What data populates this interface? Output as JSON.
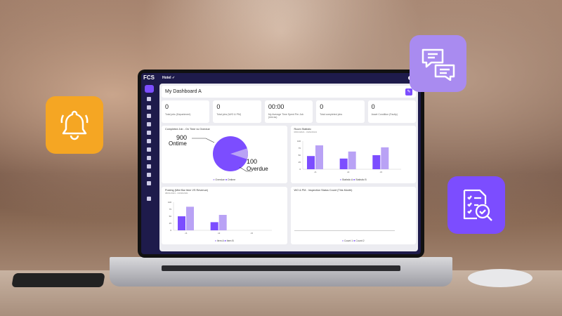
{
  "app": {
    "logo": "FCS",
    "breadcrumb": "Hotel ✓"
  },
  "header": {
    "title": "My Dashboard A"
  },
  "stats": [
    {
      "value": "0",
      "label": "Total jobs (Department)"
    },
    {
      "value": "0",
      "label": "Total jobs (W/O & PM)"
    },
    {
      "value": "00:00",
      "label": "My Average Time Spent Per Job (mm:ss)"
    },
    {
      "value": "0",
      "label": "Total completed jobs"
    },
    {
      "value": "0",
      "label": "Asset Condition (Faulty)"
    }
  ],
  "colors": {
    "dark": "#7c4dff",
    "light": "#b9a2f5",
    "bell_tile": "#f5a623",
    "chat_tile": "#a98bf0",
    "doc_tile": "#7c4dff"
  },
  "icons": [
    "bell-icon",
    "chat-icon",
    "document-search-icon"
  ],
  "chart_data": [
    {
      "type": "pie",
      "title": "Completed Job - On Time vs Overdue",
      "categories": [
        "Ontime",
        "Overdue"
      ],
      "values": [
        900,
        100
      ],
      "labels": {
        "ontime_value": "900",
        "ontime": "Ontime",
        "overdue_value": "100",
        "overdue": "Overdue"
      },
      "legend": [
        "Overdue",
        "Ontime"
      ]
    },
    {
      "type": "bar",
      "title": "Room Statistic",
      "subtitle": "08/01/2021 - 04/02/2021",
      "categories": [
        "c1",
        "c2",
        "c3"
      ],
      "ylim": [
        0,
        100
      ],
      "yticks": [
        "0",
        "25",
        "50",
        "75",
        "100"
      ],
      "series": [
        {
          "name": "Statistic A",
          "values": [
            85,
            63,
            78
          ]
        },
        {
          "name": "Statistic B",
          "values": [
            47,
            38,
            50
          ]
        }
      ]
    },
    {
      "type": "bar",
      "title": "Posting (Mini Bar Item VS Revenue)",
      "subtitle": "08/01/2021 - 04/02/2021",
      "categories": [
        "c1",
        "c2",
        "c3"
      ],
      "ylim": [
        0,
        100
      ],
      "yticks": [
        "0",
        "25",
        "50",
        "75",
        "100"
      ],
      "series": [
        {
          "name": "Item A",
          "values": [
            84,
            55,
            0
          ]
        },
        {
          "name": "Item B",
          "values": [
            50,
            29,
            0
          ]
        }
      ]
    },
    {
      "type": "bar",
      "title": "WO & PM - Inspection Status Count (This Month)",
      "categories": [],
      "series": [
        {
          "name": "Count 1",
          "values": []
        },
        {
          "name": "Count 2",
          "values": []
        }
      ]
    }
  ]
}
